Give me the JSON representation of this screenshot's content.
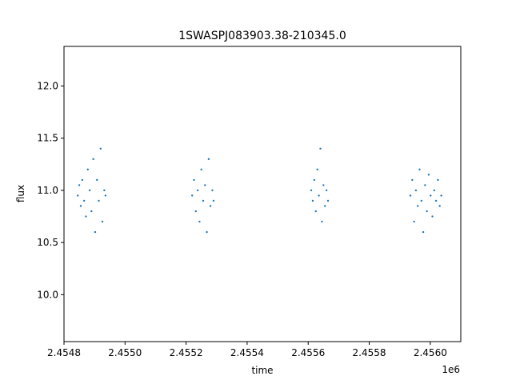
{
  "chart_data": {
    "type": "scatter",
    "title": "1SWASPJ083903.38-210345.0",
    "xlabel": "time",
    "ylabel": "flux",
    "x_offset_label": "1e6",
    "xlim": [
      2454800,
      2456100
    ],
    "ylim": [
      9.55,
      12.38
    ],
    "x_ticks": [
      {
        "value": 2454800,
        "label": "2.4548"
      },
      {
        "value": 2455000,
        "label": "2.4550"
      },
      {
        "value": 2455200,
        "label": "2.4552"
      },
      {
        "value": 2455400,
        "label": "2.4554"
      },
      {
        "value": 2455600,
        "label": "2.4556"
      },
      {
        "value": 2455800,
        "label": "2.4558"
      },
      {
        "value": 2456000,
        "label": "2.4560"
      }
    ],
    "y_ticks": [
      {
        "value": 10.0,
        "label": "10.0"
      },
      {
        "value": 10.5,
        "label": "10.5"
      },
      {
        "value": 11.0,
        "label": "11.0"
      },
      {
        "value": 11.5,
        "label": "11.5"
      },
      {
        "value": 12.0,
        "label": "12.0"
      }
    ],
    "marker_color": "#1f77b4",
    "grid": false,
    "series": [
      {
        "x": [
          2454845,
          2454850,
          2454855,
          2454860,
          2454866,
          2454872,
          2454878,
          2454884,
          2454890,
          2454896,
          2454902,
          2454908,
          2454914,
          2454920,
          2454926,
          2454932,
          2454936
        ],
        "y": [
          10.95,
          11.05,
          10.85,
          11.1,
          10.9,
          10.75,
          11.2,
          11.0,
          10.8,
          11.3,
          10.6,
          11.1,
          10.9,
          11.4,
          10.7,
          11.0,
          10.95
        ]
      },
      {
        "x": [
          2455220,
          2455226,
          2455232,
          2455238,
          2455244,
          2455250,
          2455256,
          2455262,
          2455268,
          2455274,
          2455280,
          2455286,
          2455290
        ],
        "y": [
          10.95,
          11.1,
          10.8,
          11.0,
          10.7,
          11.2,
          10.9,
          11.05,
          10.6,
          11.3,
          10.85,
          11.0,
          10.9
        ]
      },
      {
        "x": [
          2455610,
          2455615,
          2455620,
          2455625,
          2455630,
          2455635,
          2455640,
          2455645,
          2455650,
          2455655,
          2455660,
          2455665
        ],
        "y": [
          11.0,
          10.9,
          11.1,
          10.8,
          11.2,
          10.95,
          11.4,
          10.7,
          11.05,
          10.85,
          11.0,
          10.9
        ]
      },
      {
        "x": [
          2455935,
          2455941,
          2455947,
          2455953,
          2455959,
          2455965,
          2455971,
          2455977,
          2455983,
          2455989,
          2455995,
          2456001,
          2456007,
          2456013,
          2456019,
          2456025,
          2456031,
          2456036
        ],
        "y": [
          10.95,
          11.1,
          10.7,
          11.0,
          10.85,
          11.2,
          10.9,
          10.6,
          11.05,
          10.8,
          11.15,
          10.95,
          10.75,
          11.0,
          10.9,
          11.1,
          10.85,
          10.95
        ]
      }
    ]
  }
}
